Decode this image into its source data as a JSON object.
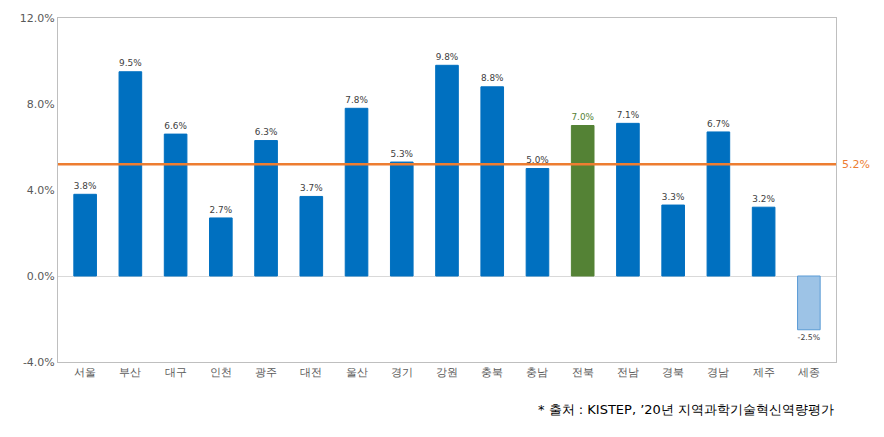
{
  "chart_data": {
    "type": "bar",
    "categories": [
      "서울",
      "부산",
      "대구",
      "인천",
      "광주",
      "대전",
      "울산",
      "경기",
      "강원",
      "충북",
      "충남",
      "전북",
      "전남",
      "경북",
      "경남",
      "제주",
      "세종"
    ],
    "values": [
      3.8,
      9.5,
      6.6,
      2.7,
      6.3,
      3.7,
      7.8,
      5.3,
      9.8,
      8.8,
      5.0,
      7.0,
      7.1,
      3.3,
      6.7,
      3.2,
      -2.5
    ],
    "value_labels": [
      "3.8%",
      "9.5%",
      "6.6%",
      "2.7%",
      "6.3%",
      "3.7%",
      "7.8%",
      "5.3%",
      "9.8%",
      "8.8%",
      "5.0%",
      "7.0%",
      "7.1%",
      "3.3%",
      "6.7%",
      "3.2%",
      "-2.5%"
    ],
    "colors": [
      "#0070c0",
      "#0070c0",
      "#0070c0",
      "#0070c0",
      "#0070c0",
      "#0070c0",
      "#0070c0",
      "#0070c0",
      "#0070c0",
      "#0070c0",
      "#0070c0",
      "#548235",
      "#0070c0",
      "#0070c0",
      "#0070c0",
      "#0070c0",
      "#9dc3e6"
    ],
    "data_labels": true,
    "ylim": [
      -4,
      12
    ],
    "yticks": [
      {
        "value": -4,
        "label": "-4.0%"
      },
      {
        "value": 0,
        "label": "0.0%"
      },
      {
        "value": 4,
        "label": "4.0%"
      },
      {
        "value": 8,
        "label": "8.0%"
      },
      {
        "value": 12,
        "label": "12.0%"
      }
    ],
    "grid": false,
    "average": {
      "value": 5.2,
      "label": "5.2%",
      "color": "#ed7d31"
    },
    "source": "* 출처 : KISTEP, ’20년 지역과학기술혁신역량평가"
  }
}
